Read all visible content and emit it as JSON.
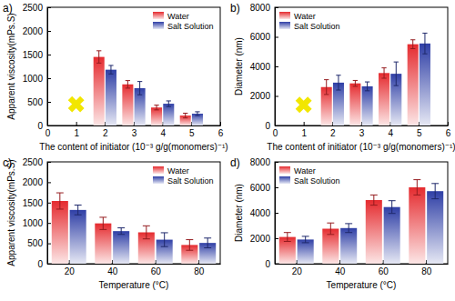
{
  "chart_data": [
    {
      "type": "bar",
      "title": "a)",
      "x_label": "The content of initiator (10⁻³ g/g(monomers)⁻¹)",
      "y_label": "Apparent viscosity(mPs.S)",
      "xlim": [
        0,
        6
      ],
      "xticks": [
        0,
        1,
        2,
        3,
        4,
        5,
        6
      ],
      "ylim": [
        0,
        2500
      ],
      "yticks": [
        0,
        500,
        1000,
        1500,
        2000,
        2500
      ],
      "legend": "upper right",
      "series": [
        {
          "name": "Water",
          "color": "#e52b2f",
          "x": [
            2,
            3,
            4,
            5
          ],
          "values": [
            1450,
            870,
            380,
            210
          ],
          "errors": [
            130,
            80,
            50,
            50
          ]
        },
        {
          "name": "Salt Solution",
          "color": "#2f3fa6",
          "x": [
            2,
            3,
            4,
            5
          ],
          "values": [
            1180,
            790,
            460,
            250
          ],
          "errors": [
            90,
            140,
            60,
            40
          ]
        },
        {
          "type": "scatter",
          "marker": "x",
          "color": "#f2e600",
          "x": [
            1
          ],
          "values": [
            450
          ]
        }
      ]
    },
    {
      "type": "bar",
      "title": "b)",
      "x_label": "The content of initiator (10⁻³ g/g(monomers)⁻¹)",
      "y_label": "Diameter (nm)",
      "xlim": [
        0,
        6
      ],
      "xticks": [
        0,
        1,
        2,
        3,
        4,
        5,
        6
      ],
      "ylim": [
        0,
        8000
      ],
      "yticks": [
        0,
        2000,
        4000,
        6000,
        8000
      ],
      "legend": "upper left",
      "series": [
        {
          "name": "Water",
          "color": "#e52b2f",
          "x": [
            2,
            3,
            4,
            5
          ],
          "values": [
            2600,
            2850,
            3550,
            5500
          ],
          "errors": [
            500,
            200,
            350,
            300
          ]
        },
        {
          "name": "Salt Solution",
          "color": "#2f3fa6",
          "x": [
            2,
            3,
            4,
            5
          ],
          "values": [
            2900,
            2650,
            3500,
            5550
          ],
          "errors": [
            500,
            300,
            800,
            700
          ]
        },
        {
          "type": "scatter",
          "marker": "x",
          "color": "#f2e600",
          "x": [
            1
          ],
          "values": [
            1400
          ]
        }
      ]
    },
    {
      "type": "bar",
      "title": "c)",
      "x_label": "Temperature (°C)",
      "y_label": "Apparent viscosity(mPs.S)",
      "xlim": [
        10,
        90
      ],
      "xticks": [
        20,
        40,
        60,
        80
      ],
      "ylim": [
        0,
        2500
      ],
      "yticks": [
        0,
        500,
        1000,
        1500,
        2000,
        2500
      ],
      "legend": "upper right",
      "series": [
        {
          "name": "Water",
          "color": "#e52b2f",
          "x": [
            20,
            40,
            60,
            80
          ],
          "values": [
            1540,
            990,
            770,
            460
          ],
          "errors": [
            200,
            150,
            160,
            130
          ]
        },
        {
          "name": "Salt Solution",
          "color": "#2f3fa6",
          "x": [
            20,
            40,
            60,
            80
          ],
          "values": [
            1320,
            800,
            590,
            510
          ],
          "errors": [
            120,
            80,
            170,
            120
          ]
        }
      ]
    },
    {
      "type": "bar",
      "title": "d)",
      "x_label": "Temperature (°C)",
      "y_label": "Diameter (nm)",
      "xlim": [
        10,
        90
      ],
      "xticks": [
        20,
        40,
        60,
        80
      ],
      "ylim": [
        0,
        8000
      ],
      "yticks": [
        0,
        2000,
        4000,
        6000,
        8000
      ],
      "legend": "upper left",
      "series": [
        {
          "name": "Water",
          "color": "#e52b2f",
          "x": [
            20,
            40,
            60,
            80
          ],
          "values": [
            2100,
            2750,
            5000,
            6000
          ],
          "errors": [
            350,
            450,
            400,
            600
          ]
        },
        {
          "name": "Salt Solution",
          "color": "#2f3fa6",
          "x": [
            20,
            40,
            60,
            80
          ],
          "values": [
            1900,
            2800,
            4450,
            5700
          ],
          "errors": [
            250,
            350,
            500,
            600
          ]
        }
      ]
    }
  ]
}
